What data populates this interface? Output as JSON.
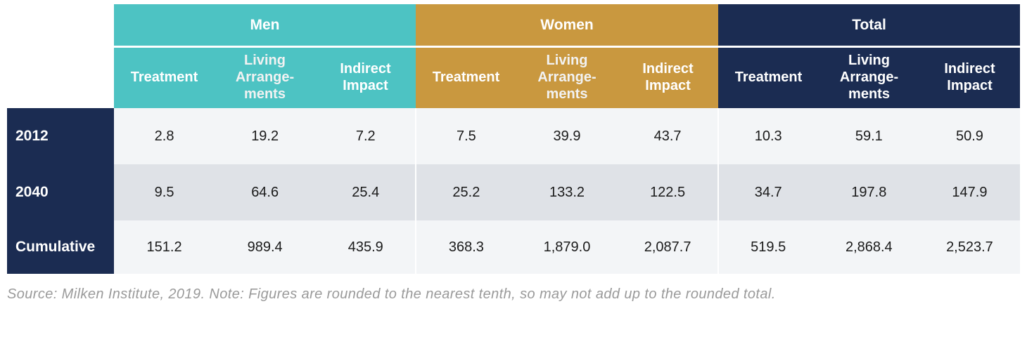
{
  "colors": {
    "men": "#4dc3c3",
    "women": "#c9983f",
    "total": "#1b2c52",
    "row_light": "#f3f5f7",
    "row_shaded": "#dfe2e7",
    "row_header": "#1b2c52"
  },
  "groups": [
    "Men",
    "Women",
    "Total"
  ],
  "subheaders": [
    "Treatment",
    "Living\nArrange-\nments",
    "Indirect\nImpact"
  ],
  "chart_data": {
    "type": "table",
    "column_groups": [
      "Men",
      "Women",
      "Total"
    ],
    "columns": [
      "Treatment",
      "Living Arrange-ments",
      "Indirect Impact"
    ],
    "rows": [
      {
        "label": "2012",
        "values": [
          "2.8",
          "19.2",
          "7.2",
          "7.5",
          "39.9",
          "43.7",
          "10.3",
          "59.1",
          "50.9"
        ]
      },
      {
        "label": "2040",
        "values": [
          "9.5",
          "64.6",
          "25.4",
          "25.2",
          "133.2",
          "122.5",
          "34.7",
          "197.8",
          "147.9"
        ]
      },
      {
        "label": "Cumulative",
        "values": [
          "151.2",
          "989.4",
          "435.9",
          "368.3",
          "1,879.0",
          "2,087.7",
          "519.5",
          "2,868.4",
          "2,523.7"
        ]
      }
    ]
  },
  "caption": "Source: Milken Institute, 2019. Note: Figures are rounded to the nearest tenth, so may not add up to the rounded total."
}
